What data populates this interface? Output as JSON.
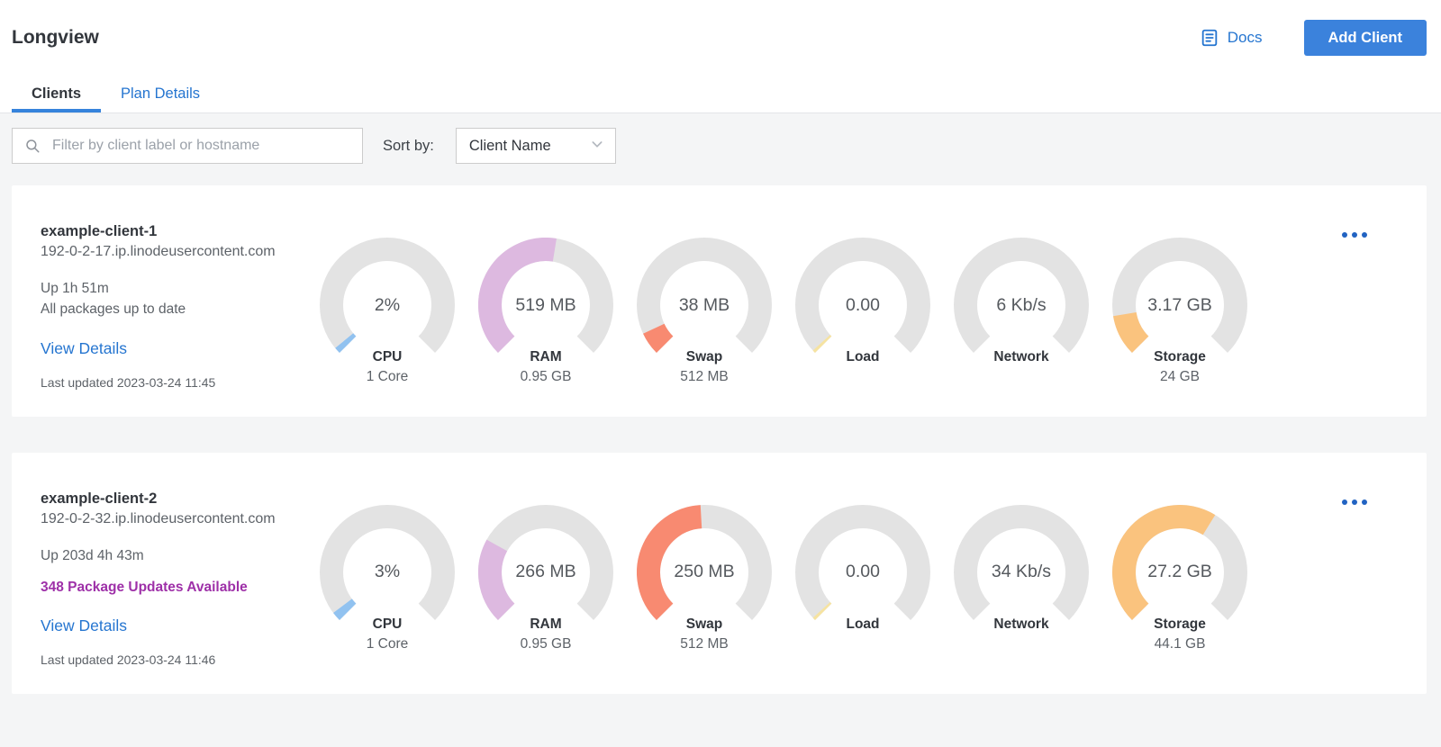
{
  "page": {
    "title": "Longview"
  },
  "header": {
    "docs_label": "Docs",
    "add_client_label": "Add Client"
  },
  "tabs": [
    {
      "label": "Clients",
      "active": true
    },
    {
      "label": "Plan Details",
      "active": false
    }
  ],
  "filter": {
    "placeholder": "Filter by client label or hostname",
    "sort_label": "Sort by:",
    "sort_value": "Client Name"
  },
  "colors": {
    "accent_blue": "#3b82dc",
    "link_blue": "#2575d0",
    "tab_underline": "#3683dc",
    "purple_alert": "#9e30a8",
    "gauge_track": "#e3e3e3",
    "kebab_blue": "#2163c2",
    "page_bg": "#f4f5f6"
  },
  "icons": {
    "docs": "document-icon",
    "search": "magnifier-icon",
    "sort": "chevron-down-icon",
    "actions": "ellipsis-icon"
  },
  "clients": [
    {
      "name": "example-client-1",
      "hostname": "192-0-2-17.ip.linodeusercontent.com",
      "uptime": "Up 1h 51m",
      "packages_status": "All packages up to date",
      "packages_highlight": false,
      "view_details_label": "View Details",
      "last_updated": "Last updated 2023-03-24 11:45",
      "gauges": [
        {
          "metric": "CPU",
          "value_label": "2%",
          "sublabel": "1 Core",
          "fraction": 0.02,
          "color": "#91c2f0"
        },
        {
          "metric": "RAM",
          "value_label": "519 MB",
          "sublabel": "0.95 GB",
          "fraction": 0.534,
          "color": "#ddb9e0"
        },
        {
          "metric": "Swap",
          "value_label": "38 MB",
          "sublabel": "512 MB",
          "fraction": 0.074,
          "color": "#f88a71"
        },
        {
          "metric": "Load",
          "value_label": "0.00",
          "sublabel": "",
          "fraction": 0.01,
          "color": "#f6e3a1"
        },
        {
          "metric": "Network",
          "value_label": "6 Kb/s",
          "sublabel": "",
          "fraction": 0,
          "color": "#9ec9a0"
        },
        {
          "metric": "Storage",
          "value_label": "3.17 GB",
          "sublabel": "24 GB",
          "fraction": 0.132,
          "color": "#fac37e"
        }
      ]
    },
    {
      "name": "example-client-2",
      "hostname": "192-0-2-32.ip.linodeusercontent.com",
      "uptime": "Up 203d 4h 43m",
      "packages_status": "348 Package Updates Available",
      "packages_highlight": true,
      "view_details_label": "View Details",
      "last_updated": "Last updated 2023-03-24 11:46",
      "gauges": [
        {
          "metric": "CPU",
          "value_label": "3%",
          "sublabel": "1 Core",
          "fraction": 0.03,
          "color": "#91c2f0"
        },
        {
          "metric": "RAM",
          "value_label": "266 MB",
          "sublabel": "0.95 GB",
          "fraction": 0.274,
          "color": "#ddb9e0"
        },
        {
          "metric": "Swap",
          "value_label": "250 MB",
          "sublabel": "512 MB",
          "fraction": 0.488,
          "color": "#f88a71"
        },
        {
          "metric": "Load",
          "value_label": "0.00",
          "sublabel": "",
          "fraction": 0.01,
          "color": "#f6e3a1"
        },
        {
          "metric": "Network",
          "value_label": "34 Kb/s",
          "sublabel": "",
          "fraction": 0,
          "color": "#9ec9a0"
        },
        {
          "metric": "Storage",
          "value_label": "27.2 GB",
          "sublabel": "44.1 GB",
          "fraction": 0.617,
          "color": "#fac37e"
        }
      ]
    }
  ]
}
